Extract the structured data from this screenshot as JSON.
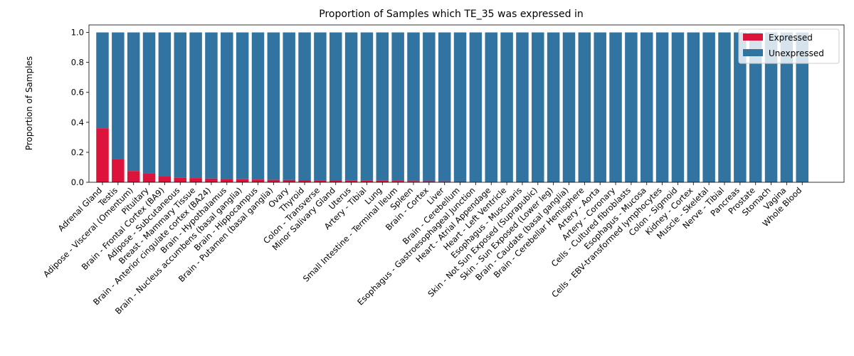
{
  "chart_data": {
    "type": "bar",
    "stacked": true,
    "title": "Proportion of Samples which TE_35 was expressed in",
    "xlabel": "",
    "ylabel": "Proportion of Samples",
    "ylim": [
      0,
      1.05
    ],
    "yticks": [
      "0.0",
      "0.2",
      "0.4",
      "0.6",
      "0.8",
      "1.0"
    ],
    "legend_position": "top-right",
    "categories": [
      "Adrenal Gland",
      "Testis",
      "Adipose - Visceral (Omentum)",
      "Pituitary",
      "Brain - Frontal Cortex (BA9)",
      "Adipose - Subcutaneous",
      "Breast - Mammary Tissue",
      "Brain - Anterior cingulate cortex (BA24)",
      "Brain - Hypothalamus",
      "Brain - Nucleus accumbens (basal ganglia)",
      "Brain - Hippocampus",
      "Brain - Putamen (basal ganglia)",
      "Ovary",
      "Thyroid",
      "Colon - Transverse",
      "Minor Salivary Gland",
      "Uterus",
      "Artery - Tibial",
      "Lung",
      "Small Intestine - Terminal Ileum",
      "Spleen",
      "Brain - Cortex",
      "Liver",
      "Brain - Cerebellum",
      "Esophagus - Gastroesophageal Junction",
      "Heart - Atrial Appendage",
      "Heart - Left Ventricle",
      "Esophagus - Muscularis",
      "Skin - Not Sun Exposed (Suprapubic)",
      "Skin - Sun Exposed (Lower leg)",
      "Brain - Caudate (basal ganglia)",
      "Brain - Cerebellar Hemisphere",
      "Artery - Aorta",
      "Artery - Coronary",
      "Cells - Cultured fibroblasts",
      "Esophagus - Mucosa",
      "Cells - EBV-transformed lymphocytes",
      "Colon - Sigmoid",
      "Kidney - Cortex",
      "Muscle - Skeletal",
      "Nerve - Tibial",
      "Pancreas",
      "Prostate",
      "Stomach",
      "Vagina",
      "Whole Blood"
    ],
    "series": [
      {
        "name": "Expressed",
        "color": "#dc143c",
        "values": [
          0.36,
          0.155,
          0.075,
          0.06,
          0.038,
          0.03,
          0.028,
          0.025,
          0.022,
          0.02,
          0.018,
          0.016,
          0.015,
          0.014,
          0.013,
          0.012,
          0.011,
          0.01,
          0.01,
          0.009,
          0.008,
          0.007,
          0.006,
          0.005,
          0.004,
          0.004,
          0.003,
          0.002,
          0,
          0,
          0,
          0,
          0,
          0,
          0,
          0,
          0,
          0,
          0,
          0,
          0,
          0,
          0,
          0,
          0,
          0
        ]
      },
      {
        "name": "Unexpressed",
        "color": "#3274a1",
        "values": [
          0.64,
          0.845,
          0.925,
          0.94,
          0.962,
          0.97,
          0.972,
          0.975,
          0.978,
          0.98,
          0.982,
          0.984,
          0.985,
          0.986,
          0.987,
          0.988,
          0.989,
          0.99,
          0.99,
          0.991,
          0.992,
          0.993,
          0.994,
          0.995,
          0.996,
          0.996,
          0.997,
          0.998,
          1,
          1,
          1,
          1,
          1,
          1,
          1,
          1,
          1,
          1,
          1,
          1,
          1,
          1,
          1,
          1,
          1,
          1
        ]
      }
    ]
  }
}
